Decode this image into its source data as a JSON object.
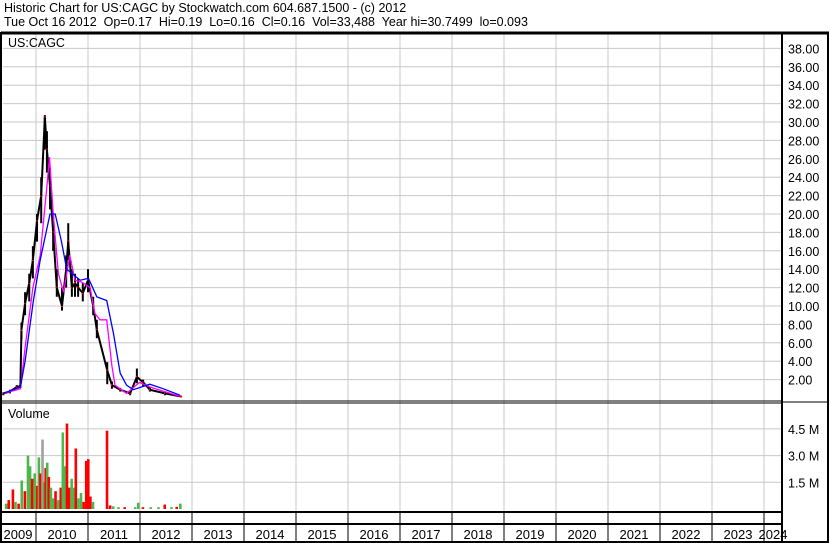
{
  "header": {
    "line1": "Historic Chart for US:CAGC by Stockwatch.com 604.687.1500 - (c) 2012",
    "line2": "Tue Oct 16 2012  Op=0.17  Hi=0.19  Lo=0.16  Cl=0.16  Vol=33,488  Year hi=30.7499  lo=0.093"
  },
  "chart_data": {
    "type": "line",
    "symbol_label": "US:CAGC",
    "volume_label": "Volume",
    "grid": true,
    "colors": {
      "price": "#000000",
      "down_tick": "#ff0000",
      "ma_short": "#ff00ff",
      "ma_long": "#0000ff",
      "vol_up": "#4cb84c",
      "vol_down": "#ff0000",
      "vol_flat": "#a0a0a0",
      "grid": "#c8c8c8"
    },
    "x_ticks": [
      "2009",
      "2010",
      "2011",
      "2012",
      "2013",
      "2014",
      "2015",
      "2016",
      "2017",
      "2018",
      "2019",
      "2020",
      "2021",
      "2022",
      "2023",
      "2024"
    ],
    "price_axis": {
      "ylim": [
        0,
        39
      ],
      "ticks": [
        "2.00",
        "4.00",
        "6.00",
        "8.00",
        "10.00",
        "12.00",
        "14.00",
        "16.00",
        "18.00",
        "20.00",
        "22.00",
        "24.00",
        "26.00",
        "28.00",
        "30.00",
        "32.00",
        "34.00",
        "36.00",
        "38.00"
      ]
    },
    "volume_axis": {
      "unit": "M",
      "ylim": [
        0,
        5.5
      ],
      "ticks": [
        "1.5 M",
        "3.0 M",
        "4.5 M"
      ]
    },
    "price": [
      [
        2009.37,
        0.6,
        0.3,
        0.5
      ],
      [
        2009.5,
        0.9,
        0.5,
        0.7
      ],
      [
        2009.63,
        1.4,
        1.0,
        1.2
      ],
      [
        2009.7,
        1.5,
        1.1,
        1.3
      ],
      [
        2009.72,
        8.2,
        6.4,
        7.4
      ],
      [
        2009.79,
        11.5,
        9.0,
        10.3
      ],
      [
        2009.87,
        13.5,
        10.5,
        12.5
      ],
      [
        2009.94,
        16.5,
        13.0,
        15
      ],
      [
        2010.02,
        20.0,
        17.0,
        19.3
      ],
      [
        2010.1,
        24.0,
        19.0,
        22
      ],
      [
        2010.17,
        30.75,
        27.0,
        30.5
      ],
      [
        2010.21,
        29.0,
        24.5,
        27
      ],
      [
        2010.27,
        25.0,
        20.5,
        23
      ],
      [
        2010.33,
        20.0,
        16.0,
        18
      ],
      [
        2010.4,
        14.0,
        11.0,
        12
      ],
      [
        2010.5,
        12.0,
        9.5,
        10
      ],
      [
        2010.58,
        15.5,
        12.0,
        14
      ],
      [
        2010.62,
        19.0,
        15.0,
        17
      ],
      [
        2010.69,
        14.0,
        11.0,
        12
      ],
      [
        2010.75,
        13.5,
        11.0,
        12.5
      ],
      [
        2010.81,
        13.0,
        11.0,
        12
      ],
      [
        2010.9,
        12.5,
        10.5,
        11.4
      ],
      [
        2011.0,
        14.0,
        11.5,
        12.8
      ],
      [
        2011.1,
        11.0,
        9.0,
        10
      ],
      [
        2011.17,
        8.5,
        6.5,
        7.4
      ],
      [
        2011.37,
        3.9,
        1.5,
        3
      ],
      [
        2011.46,
        1.8,
        1.0,
        1.4
      ],
      [
        2011.62,
        1.1,
        0.7,
        0.9
      ],
      [
        2011.81,
        0.7,
        0.3,
        0.5
      ],
      [
        2011.94,
        3.2,
        1.6,
        2.3
      ],
      [
        2012.06,
        2.0,
        1.3,
        1.7
      ],
      [
        2012.19,
        1.2,
        0.7,
        0.9
      ],
      [
        2012.48,
        0.7,
        0.3,
        0.5
      ],
      [
        2012.79,
        0.19,
        0.16,
        0.16
      ]
    ],
    "ma_short": [
      [
        2009.37,
        0.5
      ],
      [
        2009.7,
        1.0
      ],
      [
        2009.79,
        5.5
      ],
      [
        2009.94,
        12
      ],
      [
        2010.08,
        15.5
      ],
      [
        2010.21,
        23
      ],
      [
        2010.26,
        26.2
      ],
      [
        2010.33,
        20
      ],
      [
        2010.43,
        13.5
      ],
      [
        2010.53,
        11.5
      ],
      [
        2010.65,
        15.5
      ],
      [
        2010.75,
        12.8
      ],
      [
        2010.88,
        12.6
      ],
      [
        2011.04,
        12
      ],
      [
        2011.13,
        9.2
      ],
      [
        2011.23,
        8.5
      ],
      [
        2011.36,
        8.5
      ],
      [
        2011.46,
        3.5
      ],
      [
        2011.52,
        1.4
      ],
      [
        2011.74,
        0.5
      ],
      [
        2011.99,
        1.7
      ],
      [
        2012.19,
        1.2
      ],
      [
        2012.77,
        0.2
      ]
    ],
    "ma_long": [
      [
        2009.37,
        0.5
      ],
      [
        2009.7,
        1.2
      ],
      [
        2009.79,
        4
      ],
      [
        2009.95,
        10.6
      ],
      [
        2010.08,
        15
      ],
      [
        2010.27,
        20
      ],
      [
        2010.37,
        20
      ],
      [
        2010.49,
        17
      ],
      [
        2010.59,
        14
      ],
      [
        2010.85,
        12.8
      ],
      [
        2011.01,
        13
      ],
      [
        2011.17,
        11
      ],
      [
        2011.36,
        10.6
      ],
      [
        2011.49,
        7
      ],
      [
        2011.62,
        2.7
      ],
      [
        2011.74,
        1.4
      ],
      [
        2011.87,
        0.9
      ],
      [
        2012.19,
        1.5
      ],
      [
        2012.45,
        1.0
      ],
      [
        2012.77,
        0.3
      ]
    ],
    "volume": [
      [
        2009.42,
        0.3,
        "up"
      ],
      [
        2009.47,
        0.5,
        "down"
      ],
      [
        2009.55,
        1.1,
        "down"
      ],
      [
        2009.6,
        0.4,
        "up"
      ],
      [
        2009.66,
        0.3,
        "down"
      ],
      [
        2009.72,
        1.6,
        "up"
      ],
      [
        2009.78,
        1.0,
        "down"
      ],
      [
        2009.84,
        3.0,
        "up"
      ],
      [
        2009.88,
        2.4,
        "up"
      ],
      [
        2009.92,
        1.7,
        "down"
      ],
      [
        2009.97,
        2.0,
        "up"
      ],
      [
        2010.02,
        1.3,
        "down"
      ],
      [
        2010.05,
        2.9,
        "up"
      ],
      [
        2010.08,
        2.0,
        "down"
      ],
      [
        2010.12,
        3.9,
        "flat"
      ],
      [
        2010.15,
        1.5,
        "up"
      ],
      [
        2010.18,
        2.3,
        "down"
      ],
      [
        2010.21,
        2.6,
        "up"
      ],
      [
        2010.24,
        1.8,
        "down"
      ],
      [
        2010.28,
        1.2,
        "up"
      ],
      [
        2010.32,
        0.6,
        "up"
      ],
      [
        2010.37,
        1.0,
        "down"
      ],
      [
        2010.42,
        0.5,
        "up"
      ],
      [
        2010.47,
        1.2,
        "down"
      ],
      [
        2010.51,
        4.3,
        "up"
      ],
      [
        2010.55,
        2.4,
        "up"
      ],
      [
        2010.59,
        4.8,
        "down"
      ],
      [
        2010.63,
        1.2,
        "down"
      ],
      [
        2010.68,
        1.7,
        "up"
      ],
      [
        2010.72,
        1.2,
        "up"
      ],
      [
        2010.76,
        3.4,
        "down"
      ],
      [
        2010.81,
        0.6,
        "up"
      ],
      [
        2010.86,
        0.9,
        "up"
      ],
      [
        2010.91,
        0.4,
        "down"
      ],
      [
        2010.96,
        2.7,
        "down"
      ],
      [
        2011.0,
        2.8,
        "down"
      ],
      [
        2011.04,
        0.7,
        "down"
      ],
      [
        2011.09,
        0.4,
        "up"
      ],
      [
        2011.36,
        4.4,
        "down"
      ],
      [
        2011.42,
        0.2,
        "down"
      ],
      [
        2011.48,
        0.15,
        "up"
      ],
      [
        2011.58,
        0.1,
        "up"
      ],
      [
        2011.7,
        0.1,
        "down"
      ],
      [
        2011.9,
        0.1,
        "up"
      ],
      [
        2011.96,
        0.35,
        "up"
      ],
      [
        2012.05,
        0.1,
        "down"
      ],
      [
        2012.2,
        0.1,
        "up"
      ],
      [
        2012.35,
        0.1,
        "up"
      ],
      [
        2012.47,
        0.25,
        "down"
      ],
      [
        2012.6,
        0.1,
        "up"
      ],
      [
        2012.7,
        0.12,
        "down"
      ],
      [
        2012.77,
        0.3,
        "up"
      ]
    ]
  }
}
